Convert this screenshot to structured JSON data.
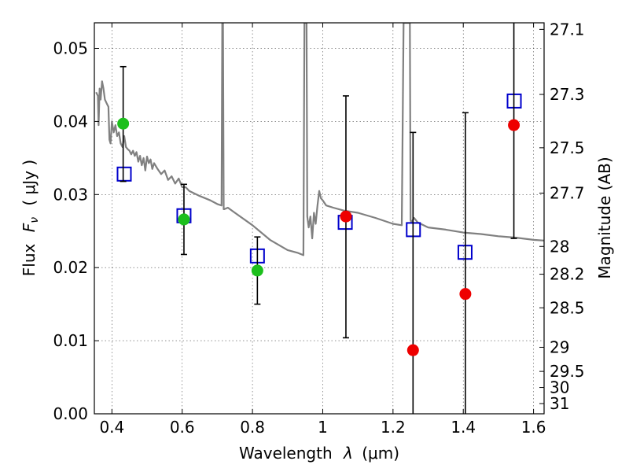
{
  "chart_data": {
    "type": "scatter",
    "xlabel": "Wavelength λ (μm)",
    "ylabel": "Flux F_ν (μJy)",
    "y2label": "Magnitude (AB)",
    "xlim": [
      0.35,
      1.63
    ],
    "ylim": [
      0.0,
      0.0535
    ],
    "grid": true,
    "x_ticks": [
      0.4,
      0.6,
      0.8,
      1.0,
      1.2,
      1.4,
      1.6
    ],
    "x_tick_labels": [
      "0.4",
      "0.6",
      "0.8",
      "1",
      "1.2",
      "1.4",
      "1.6"
    ],
    "y_ticks": [
      0.0,
      0.01,
      0.02,
      0.03,
      0.04,
      0.05
    ],
    "y_tick_labels": [
      "0.00",
      "0.01",
      "0.02",
      "0.03",
      "0.04",
      "0.05"
    ],
    "y2_ticks": [
      {
        "flux": 0.0526,
        "label": "27.1"
      },
      {
        "flux": 0.0437,
        "label": "27.3"
      },
      {
        "flux": 0.0364,
        "label": "27.5"
      },
      {
        "flux": 0.0302,
        "label": "27.7"
      },
      {
        "flux": 0.0229,
        "label": "28"
      },
      {
        "flux": 0.0191,
        "label": "28.2"
      },
      {
        "flux": 0.0145,
        "label": "28.5"
      },
      {
        "flux": 0.0091,
        "label": "29"
      },
      {
        "flux": 0.0058,
        "label": "29.5"
      },
      {
        "flux": 0.0036,
        "label": "30"
      },
      {
        "flux": 0.0014,
        "label": "31"
      }
    ],
    "series": [
      {
        "kind": "line",
        "color": "#808080",
        "x": [
          0.355,
          0.36,
          0.362,
          0.365,
          0.368,
          0.372,
          0.376,
          0.38,
          0.385,
          0.39,
          0.393,
          0.396,
          0.4,
          0.405,
          0.41,
          0.415,
          0.42,
          0.425,
          0.43,
          0.435,
          0.44,
          0.445,
          0.45,
          0.455,
          0.46,
          0.465,
          0.47,
          0.475,
          0.48,
          0.485,
          0.49,
          0.495,
          0.5,
          0.505,
          0.51,
          0.515,
          0.52,
          0.53,
          0.54,
          0.55,
          0.56,
          0.57,
          0.58,
          0.59,
          0.6,
          0.61,
          0.62,
          0.65,
          0.68,
          0.7,
          0.712,
          0.714,
          0.716,
          0.718,
          0.72,
          0.73,
          0.75,
          0.8,
          0.85,
          0.9,
          0.93,
          0.945,
          0.948,
          0.95,
          0.952,
          0.954,
          0.956,
          0.96,
          0.965,
          0.97,
          0.975,
          0.98,
          0.985,
          0.99,
          0.995,
          1.0,
          1.01,
          1.03,
          1.06,
          1.1,
          1.15,
          1.2,
          1.225,
          1.23,
          1.232,
          1.234,
          1.24,
          1.248,
          1.25,
          1.252,
          1.26,
          1.27,
          1.3,
          1.35,
          1.4,
          1.45,
          1.5,
          1.55,
          1.6,
          1.63
        ],
        "y": [
          0.044,
          0.0435,
          0.0395,
          0.0445,
          0.043,
          0.0455,
          0.0445,
          0.043,
          0.0425,
          0.042,
          0.0375,
          0.037,
          0.04,
          0.0385,
          0.0395,
          0.038,
          0.0385,
          0.037,
          0.0365,
          0.038,
          0.0365,
          0.0362,
          0.036,
          0.0355,
          0.036,
          0.0353,
          0.0358,
          0.0345,
          0.0353,
          0.034,
          0.035,
          0.0333,
          0.0352,
          0.0343,
          0.0348,
          0.0335,
          0.0343,
          0.0335,
          0.0328,
          0.0333,
          0.032,
          0.0325,
          0.0315,
          0.0322,
          0.031,
          0.031,
          0.0305,
          0.0298,
          0.0292,
          0.0287,
          0.0285,
          0.0535,
          0.0535,
          0.028,
          0.028,
          0.0282,
          0.0275,
          0.0258,
          0.0238,
          0.0224,
          0.022,
          0.0217,
          0.0535,
          0.0535,
          0.0535,
          0.0535,
          0.027,
          0.0255,
          0.027,
          0.024,
          0.0275,
          0.026,
          0.0285,
          0.0305,
          0.0295,
          0.0292,
          0.0285,
          0.0282,
          0.0278,
          0.0275,
          0.0268,
          0.026,
          0.0258,
          0.0535,
          0.0535,
          0.0535,
          0.0535,
          0.0535,
          0.0265,
          0.0262,
          0.0268,
          0.0262,
          0.0255,
          0.0252,
          0.0248,
          0.0246,
          0.0243,
          0.0241,
          0.0238,
          0.0237
        ]
      },
      {
        "kind": "squares",
        "color": "#0000cc",
        "x": [
          0.435,
          0.605,
          0.814,
          1.064,
          1.258,
          1.405,
          1.545
        ],
        "y": [
          0.0328,
          0.0271,
          0.0216,
          0.0262,
          0.0252,
          0.0221,
          0.0428
        ]
      },
      {
        "kind": "errorbar_points",
        "x": [
          0.432,
          0.605,
          0.814,
          1.066,
          1.257,
          1.406,
          1.544
        ],
        "y": [
          0.0397,
          0.0266,
          0.0196,
          0.027,
          0.0087,
          0.0164,
          0.0395
        ],
        "ylow": [
          0.0318,
          0.0218,
          0.015,
          0.0104,
          0.0,
          0.0,
          0.024
        ],
        "yhigh": [
          0.0475,
          0.0314,
          0.0242,
          0.0435,
          0.0385,
          0.0412,
          0.0535
        ],
        "colors": [
          "#1cbf1c",
          "#1cbf1c",
          "#1cbf1c",
          "#ee0000",
          "#ee0000",
          "#ee0000",
          "#ee0000"
        ]
      }
    ]
  }
}
